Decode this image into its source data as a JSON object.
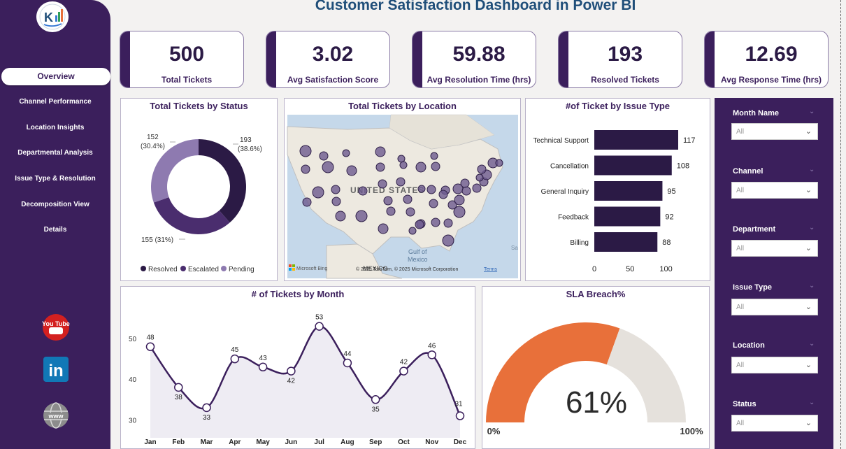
{
  "title": "Customer Satisfaction Dashboard in Power BI",
  "sidebar": {
    "items": [
      {
        "label": "Overview",
        "active": true
      },
      {
        "label": "Channel Performance"
      },
      {
        "label": "Location Insights"
      },
      {
        "label": "Departmental Analysis"
      },
      {
        "label": "Issue Type & Resolution"
      },
      {
        "label": "Decomposition View"
      },
      {
        "label": "Details"
      }
    ],
    "social": [
      {
        "icon": "youtube-icon",
        "text": "You Tube"
      },
      {
        "icon": "linkedin-icon",
        "text": "in"
      },
      {
        "icon": "www-globe-icon",
        "text": "www"
      }
    ]
  },
  "kpis": [
    {
      "value": "500",
      "label": "Total Tickets"
    },
    {
      "value": "3.02",
      "label": "Avg Satisfaction Score"
    },
    {
      "value": "59.88",
      "label": "Avg Resolution Time (hrs)"
    },
    {
      "value": "193",
      "label": "Resolved Tickets"
    },
    {
      "value": "12.69",
      "label": "Avg Response Time (hrs)"
    }
  ],
  "status_card": {
    "title": "Total Tickets by Status",
    "callouts": {
      "resolved": [
        "193",
        "(38.6%)"
      ],
      "pending": [
        "152",
        "(30.4%)"
      ],
      "escalated": "155 (31%)"
    }
  },
  "map_card": {
    "title": "Total Tickets by Location",
    "country_label": "UNITED STATES",
    "gulf_label": [
      "Gulf of",
      "Mexico"
    ],
    "mexico_label": "MEXICO",
    "bing_label": "Microsoft Bing",
    "copyright": "© 2025 TomTom, © 2025 Microsoft Corporation",
    "terms": "Terms",
    "sa_label": "Sa"
  },
  "month_card": {
    "title": "# of Tickets by Month"
  },
  "gauge_card": {
    "title": "SLA Breach%",
    "value_label": "61%",
    "min_label": "0%",
    "max_label": "100%"
  },
  "slicers": [
    {
      "label": "Month Name",
      "value": "All"
    },
    {
      "label": "Channel",
      "value": "All"
    },
    {
      "label": "Department",
      "value": "All"
    },
    {
      "label": "Issue Type",
      "value": "All"
    },
    {
      "label": "Location",
      "value": "All"
    },
    {
      "label": "Status",
      "value": "All"
    }
  ],
  "colors": {
    "primary": "#3b1f5c",
    "dark": "#2b1a45",
    "pending": "#8e7ab0",
    "sla_fill": "#e8703a",
    "sla_bg": "#e5e1dc",
    "area_fill": "#eeecf3"
  },
  "chart_data": [
    {
      "type": "pie",
      "title": "Total Tickets by Status",
      "categories": [
        "Resolved",
        "Escalated",
        "Pending"
      ],
      "values": [
        193,
        155,
        152
      ],
      "percent_labels": [
        "38.6%",
        "31%",
        "30.4%"
      ],
      "colors": [
        "#2b1a45",
        "#4a2d6e",
        "#8e7ab0"
      ],
      "legend": "bottom"
    },
    {
      "type": "bar",
      "orientation": "horizontal",
      "title": "#of Ticket by Issue Type",
      "categories": [
        "Technical Support",
        "Cancellation",
        "General Inquiry",
        "Feedback",
        "Billing"
      ],
      "values": [
        117,
        108,
        95,
        92,
        88
      ],
      "xlim": [
        0,
        130
      ],
      "ticks": [
        0,
        50,
        100
      ]
    },
    {
      "type": "line",
      "title": "# of Tickets by Month",
      "categories": [
        "Jan",
        "Feb",
        "Mar",
        "Apr",
        "May",
        "Jun",
        "Jul",
        "Aug",
        "Sep",
        "Oct",
        "Nov",
        "Dec"
      ],
      "values": [
        48,
        38,
        33,
        45,
        43,
        42,
        53,
        44,
        35,
        42,
        46,
        31
      ],
      "yticks": [
        30,
        40,
        50
      ],
      "ylim": [
        28,
        55
      ]
    },
    {
      "type": "gauge",
      "title": "SLA Breach%",
      "value": 61,
      "min": 0,
      "max": 100
    }
  ]
}
